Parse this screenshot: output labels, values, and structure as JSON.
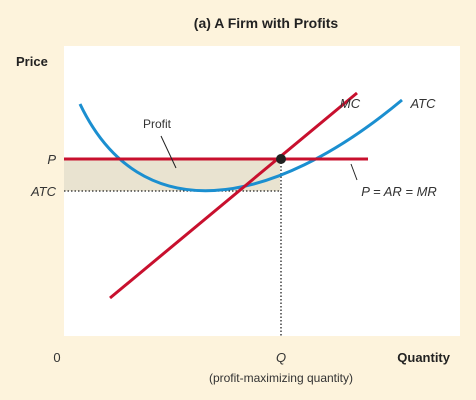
{
  "title": "(a) A Firm with Profits",
  "axes": {
    "y_label": "Price",
    "x_label": "Quantity",
    "origin_label": "0",
    "y_tick_price": "P",
    "y_tick_atc": "ATC",
    "x_tick_q": "Q",
    "x_tick_note": "(profit-maximizing quantity)"
  },
  "labels": {
    "mc": "MC",
    "atc": "ATC",
    "profit": "Profit",
    "demand": "P = AR = MR"
  },
  "colors": {
    "background": "#fdf3dc",
    "plot_area": "#ffffff",
    "mc_line": "#c8102e",
    "price_line": "#c8102e",
    "atc_curve": "#1b8fd0",
    "profit_fill": "#e9e3d0",
    "equilibrium_dot": "#222222"
  }
}
